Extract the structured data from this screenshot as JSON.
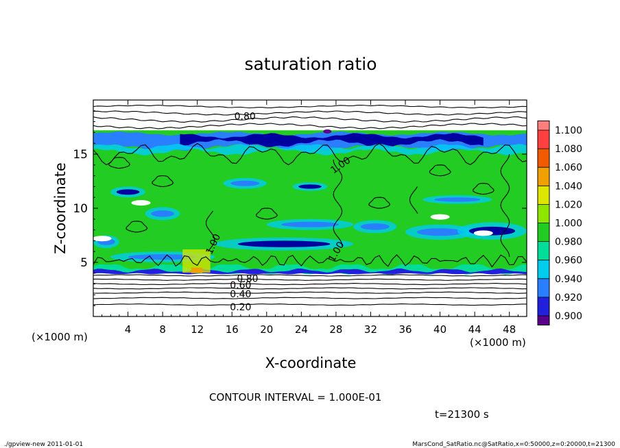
{
  "chart_data": {
    "type": "heatmap",
    "title": "saturation ratio",
    "xlabel": "X-coordinate",
    "ylabel": "Z-coordinate",
    "x_unit_left": "(×1000 m)",
    "x_unit_right": "(×1000 m)",
    "xlim": [
      0,
      50
    ],
    "ylim": [
      0,
      20
    ],
    "x_ticks": [
      "4",
      "8",
      "12",
      "16",
      "20",
      "24",
      "28",
      "32",
      "36",
      "40",
      "44",
      "48"
    ],
    "x_tick_values": [
      4,
      8,
      12,
      16,
      20,
      24,
      28,
      32,
      36,
      40,
      44,
      48
    ],
    "y_ticks": [
      "5",
      "10",
      "15"
    ],
    "y_tick_values": [
      5,
      10,
      15
    ],
    "contour_interval_text": "CONTOUR INTERVAL = 1.000E-01",
    "time_text": "t=21300 s",
    "contour_labels": [
      {
        "text": "0.80",
        "x": 17.5,
        "z": 18.5,
        "rotate": 0
      },
      {
        "text": "1.00",
        "x": 28.5,
        "z": 14.0,
        "rotate": -35
      },
      {
        "text": "1.00",
        "x": 13.8,
        "z": 6.7,
        "rotate": -65
      },
      {
        "text": "1.00",
        "x": 28.0,
        "z": 6.0,
        "rotate": -60
      },
      {
        "text": "0.80",
        "x": 17.8,
        "z": 3.5,
        "rotate": 0
      },
      {
        "text": "0.60",
        "x": 17.0,
        "z": 2.9,
        "rotate": 0
      },
      {
        "text": "0.40",
        "x": 17.0,
        "z": 2.1,
        "rotate": 0
      },
      {
        "text": "0.20",
        "x": 17.0,
        "z": 0.9,
        "rotate": 0
      }
    ],
    "colorbar": {
      "levels": [
        "1.100",
        "1.080",
        "1.060",
        "1.040",
        "1.020",
        "1.000",
        "0.980",
        "0.960",
        "0.940",
        "0.920",
        "0.900"
      ],
      "colors": [
        "#ff7f7f",
        "#ff4040",
        "#f05a00",
        "#f0a000",
        "#dde600",
        "#8ee600",
        "#22cc22",
        "#00dd99",
        "#00ccee",
        "#2a7fff",
        "#2020dd",
        "#0000a0",
        "#5a0088"
      ]
    },
    "colors": {
      "supersat": "#22cc22",
      "near": "#00dd99",
      "blue": "#2a7fff",
      "dark_blue": "#0000a0",
      "deep_blue": "#2020dd",
      "cyan": "#00ccee",
      "yellow": "#dde600",
      "orange": "#f0a000",
      "purple": "#5a0088"
    }
  },
  "footer": {
    "left": "./gpview-new  2011-01-01",
    "right": "MarsCond_SatRatio.nc@SatRatio,x=0:50000,z=0:20000,t=21300"
  }
}
